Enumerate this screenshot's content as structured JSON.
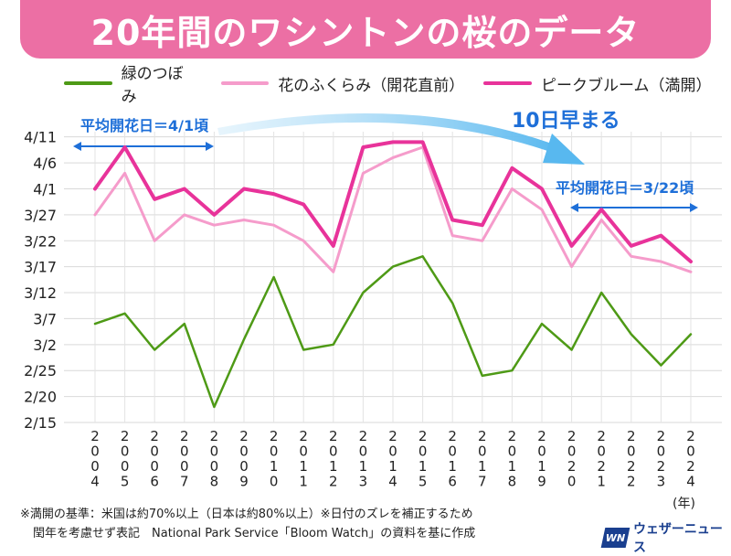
{
  "title": "20年間のワシントンの桜のデータ",
  "legend": [
    {
      "label": "緑のつぼみ",
      "color": "#4e9a16"
    },
    {
      "label": "花のふくらみ（開花直前）",
      "color": "#f59ccb"
    },
    {
      "label": "ピークブルーム（満開）",
      "color": "#e8339a"
    }
  ],
  "annotations": {
    "avg_old": "平均開花日＝4/1頃",
    "avg_new": "平均開花日＝3/22頃",
    "shift": "10日早まる"
  },
  "unit": "(年)",
  "footnote": {
    "line1": "※満開の基準：米国は約70%以上（日本は約80%以上）※日付のズレを補正するため",
    "line2": "閏年を考慮せず表記　National Park Service「Bloom Watch」の資料を基に作成"
  },
  "logo": {
    "mark": "WN",
    "text": "ウェザーニュース"
  },
  "chart_data": {
    "type": "line",
    "title": "20年間のワシントンの桜のデータ",
    "x": [
      "2004",
      "2005",
      "2006",
      "2007",
      "2008",
      "2009",
      "2010",
      "2011",
      "2012",
      "2013",
      "2014",
      "2015",
      "2016",
      "2017",
      "2018",
      "2019",
      "2020",
      "2021",
      "2022",
      "2023",
      "2024"
    ],
    "y_ticks": [
      "2/15",
      "2/20",
      "2/25",
      "3/2",
      "3/7",
      "3/12",
      "3/17",
      "3/22",
      "3/27",
      "4/1",
      "4/6",
      "4/11"
    ],
    "y_tick_doy": [
      46,
      51,
      56,
      61,
      66,
      71,
      76,
      81,
      86,
      91,
      96,
      101
    ],
    "ylim": [
      46,
      102
    ],
    "grid": true,
    "legend_position": "top",
    "series": [
      {
        "name": "緑のつぼみ",
        "color": "#4e9a16",
        "doy": [
          65,
          67,
          60,
          65,
          49,
          62,
          74,
          60,
          61,
          71,
          76,
          78,
          69,
          55,
          56,
          65,
          60,
          71,
          63,
          57,
          63
        ]
      },
      {
        "name": "花のふくらみ（開花直前）",
        "color": "#f59ccb",
        "doy": [
          86,
          94,
          81,
          86,
          84,
          85,
          84,
          81,
          75,
          94,
          97,
          99,
          82,
          81,
          91,
          87,
          76,
          85,
          78,
          77,
          75
        ]
      },
      {
        "name": "ピークブルーム（満開）",
        "color": "#e8339a",
        "doy": [
          91,
          99,
          89,
          91,
          86,
          91,
          90,
          88,
          80,
          99,
          100,
          100,
          85,
          84,
          95,
          91,
          80,
          87,
          80,
          82,
          77
        ]
      }
    ]
  }
}
